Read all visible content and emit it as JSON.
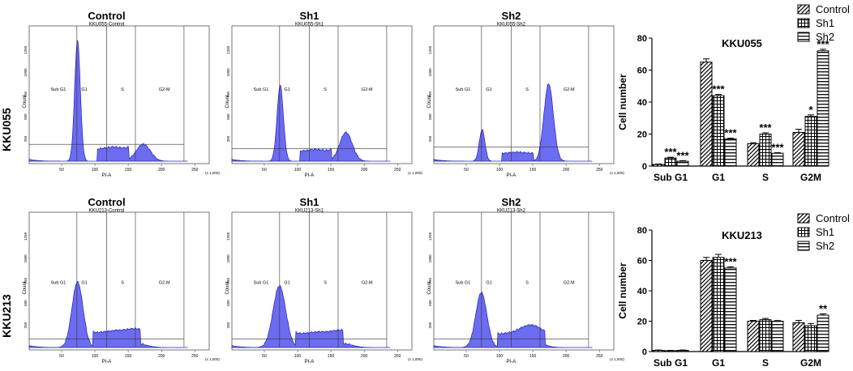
{
  "row_labels": [
    "KKU055",
    "KKU213"
  ],
  "flow_common": {
    "gates": [
      "Sub G1",
      "G1",
      "S",
      "G2-M"
    ],
    "ylabel": "Count",
    "xlabel": "PI-A",
    "x_unit": "(x 1,000)",
    "x_ticks": [
      "50",
      "100",
      "150",
      "200",
      "250"
    ],
    "y_ticks": [
      "250",
      "500",
      "750",
      "1000",
      "1250"
    ]
  },
  "flow_panels": [
    {
      "title": "Control",
      "subtitle": "KKU055-Control"
    },
    {
      "title": "Sh1",
      "subtitle": "KKU055-Sh1"
    },
    {
      "title": "Sh2",
      "subtitle": "KKU055-Sh2"
    },
    {
      "title": "Control",
      "subtitle": "KKU213-Control"
    },
    {
      "title": "Sh1",
      "subtitle": "KKU213-Sh1"
    },
    {
      "title": "Sh2",
      "subtitle": "KKU213-Sh2"
    }
  ],
  "colors": {
    "histogram_fill": "#6c6cf0",
    "histogram_edge": "#2020c8"
  },
  "chart_data": [
    {
      "type": "bar",
      "title": "KKU055",
      "ylabel": "Cell number",
      "ylim": [
        0,
        80
      ],
      "yticks": [
        "0",
        "20",
        "40",
        "60",
        "80"
      ],
      "categories": [
        "Sub G1",
        "G1",
        "S",
        "G2M"
      ],
      "legend_position": "top-right",
      "series": [
        {
          "name": "Control",
          "values": [
            1,
            65,
            14,
            21
          ],
          "errors": [
            0.3,
            2,
            0.6,
            2
          ]
        },
        {
          "name": "Sh1",
          "values": [
            5,
            44,
            20,
            31
          ],
          "errors": [
            0.5,
            0.8,
            0.8,
            1
          ]
        },
        {
          "name": "Sh2",
          "values": [
            3,
            17,
            8,
            72
          ],
          "errors": [
            0.4,
            0.4,
            0.4,
            1
          ]
        }
      ],
      "significance": [
        {
          "category": 0,
          "series": 1,
          "label": "***"
        },
        {
          "category": 0,
          "series": 2,
          "label": "***"
        },
        {
          "category": 1,
          "series": 1,
          "label": "***"
        },
        {
          "category": 1,
          "series": 2,
          "label": "***"
        },
        {
          "category": 2,
          "series": 1,
          "label": "***"
        },
        {
          "category": 2,
          "series": 2,
          "label": "***"
        },
        {
          "category": 3,
          "series": 1,
          "label": "*"
        },
        {
          "category": 3,
          "series": 2,
          "label": "***"
        }
      ]
    },
    {
      "type": "bar",
      "title": "KKU213",
      "ylabel": "Cell number",
      "ylim": [
        0,
        80
      ],
      "yticks": [
        "0",
        "20",
        "40",
        "60",
        "80"
      ],
      "categories": [
        "Sub G1",
        "G1",
        "S",
        "G2M"
      ],
      "legend_position": "top-right",
      "series": [
        {
          "name": "Control",
          "values": [
            0.8,
            60,
            20,
            19
          ],
          "errors": [
            0.2,
            2,
            0.5,
            1.5
          ]
        },
        {
          "name": "Sh1",
          "values": [
            0.6,
            62,
            21,
            17
          ],
          "errors": [
            0.2,
            2,
            0.8,
            1.5
          ]
        },
        {
          "name": "Sh2",
          "values": [
            0.8,
            55,
            20,
            24
          ],
          "errors": [
            0.2,
            0.8,
            0.4,
            0.8
          ]
        }
      ],
      "significance": [
        {
          "category": 1,
          "series": 2,
          "label": "***"
        },
        {
          "category": 3,
          "series": 2,
          "label": "**"
        }
      ]
    }
  ]
}
